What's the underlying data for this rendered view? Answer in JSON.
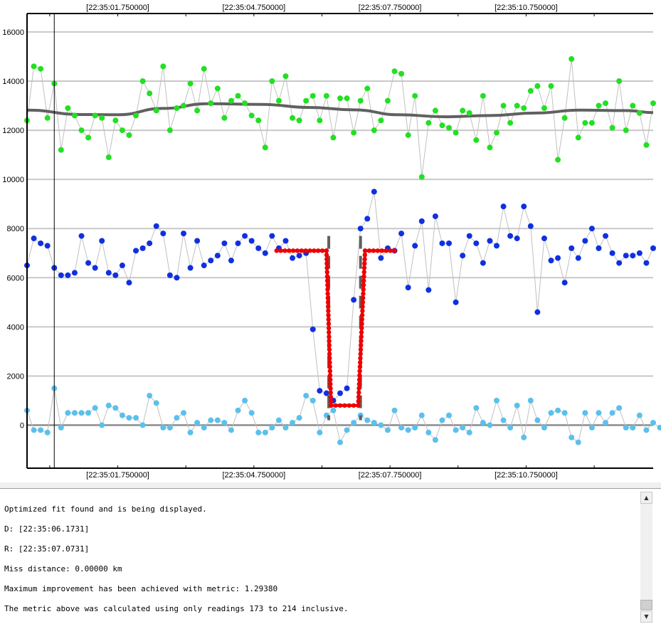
{
  "chart_data": {
    "type": "scatter",
    "title": "",
    "xlabel": "",
    "ylabel": "",
    "x_ticks": [
      "[22:35:01.750000]",
      "[22:35:04.750000]",
      "[22:35:07.750000]",
      "[22:35:10.750000]"
    ],
    "x_tick_readings": [
      20,
      50,
      80,
      110
    ],
    "y_ticks": [
      0,
      2000,
      4000,
      6000,
      8000,
      10000,
      12000,
      14000,
      16000
    ],
    "y_tick_labels": [
      "0",
      "2000",
      "4000",
      "6000",
      "8000",
      "10000",
      "12000",
      "14000",
      "16000"
    ],
    "ylim": [
      -1750,
      16750
    ],
    "xlim_readings": [
      0,
      138
    ],
    "grid": "horizontal",
    "cursor_reading": 6,
    "colors": {
      "comparison": "#22e022",
      "target": "#1030e0",
      "background": "#5bc0ec",
      "fit": "#ee0000",
      "trend": "#606060",
      "edges": "#606060",
      "connector": "#c0c0c0"
    },
    "series": [
      {
        "role": "comparison",
        "values": [
          12400,
          14600,
          14500,
          12500,
          13900,
          11200,
          12900,
          12600,
          12000,
          11700,
          12600,
          12500,
          10900,
          12400,
          12000,
          11800,
          12600,
          14000,
          13500,
          12800,
          14600,
          12000,
          12900,
          13000,
          13900,
          12800,
          14500,
          13100,
          13700,
          12500,
          13200,
          13400,
          13100,
          12600,
          12400,
          11300,
          14000,
          13200,
          14200,
          12500,
          12400,
          13200,
          13400,
          12400,
          13400,
          11700,
          13300,
          13300,
          11900,
          13200,
          13700,
          12000,
          12400,
          13200,
          14400,
          14300,
          11800,
          13400,
          10100,
          12300,
          12800,
          12200,
          12100,
          11900,
          12800,
          12700,
          11600,
          13400,
          11300,
          11900,
          13000,
          12300,
          13000,
          12900,
          13600,
          13800,
          12900,
          13800,
          10800,
          12500,
          14900,
          11700,
          12300,
          12300,
          13000,
          13100,
          12100,
          14000,
          12000,
          13000,
          12700,
          11400,
          13100
        ]
      },
      {
        "role": "target",
        "values": [
          6500,
          7600,
          7400,
          7300,
          6400,
          6100,
          6100,
          6200,
          7700,
          6600,
          6400,
          7500,
          6200,
          6100,
          6500,
          5800,
          7100,
          7200,
          7400,
          8100,
          7800,
          6100,
          6000,
          7800,
          6400,
          7500,
          6500,
          6700,
          6900,
          7400,
          6700,
          7400,
          7700,
          7500,
          7200,
          7000,
          7700,
          7200,
          7500,
          6800,
          6900,
          7000,
          3900,
          1400,
          1300,
          1000,
          1300,
          1500,
          5100,
          8000,
          8400,
          9500,
          6800,
          7200,
          7100,
          7800,
          5600,
          7300,
          8300,
          5500,
          8500,
          7400,
          7400,
          5000,
          6900,
          7700,
          7400,
          6600,
          7500,
          7300,
          8900,
          7700,
          7600,
          8900,
          8100,
          4600,
          7600,
          6700,
          6800,
          5800,
          7200,
          6800,
          7500,
          8000,
          7200,
          7700,
          7000,
          6600,
          6900,
          6900,
          7000,
          6600,
          7200
        ]
      },
      {
        "role": "background",
        "values": [
          600,
          -200,
          -200,
          -300,
          1500,
          -100,
          500,
          500,
          500,
          500,
          700,
          0,
          800,
          700,
          400,
          300,
          300,
          0,
          1200,
          900,
          -100,
          -100,
          300,
          500,
          -300,
          100,
          -100,
          200,
          200,
          100,
          -200,
          600,
          1000,
          500,
          -300,
          -300,
          -100,
          200,
          -100,
          100,
          300,
          1200,
          1000,
          -300,
          400,
          600,
          -700,
          -200,
          100,
          400,
          200,
          100,
          0,
          -200,
          600,
          -100,
          -200,
          -100,
          400,
          -300,
          -600,
          200,
          400,
          -200,
          -100,
          -300,
          700,
          100,
          0,
          1000,
          200,
          -100,
          800,
          -500,
          1000,
          200,
          -100,
          500,
          600,
          500,
          -500,
          -700,
          500,
          -100,
          500,
          100,
          500,
          700,
          -100,
          -100,
          400,
          -200,
          100,
          -100,
          -400,
          -900
        ]
      },
      {
        "role": "fit",
        "segments": [
          {
            "x": [
              55,
              66
            ],
            "y": [
              7100,
              7100
            ]
          },
          {
            "x": [
              66,
              67
            ],
            "y": [
              7100,
              800
            ]
          },
          {
            "x": [
              67,
              73
            ],
            "y": [
              800,
              800
            ]
          },
          {
            "x": [
              73,
              74.5
            ],
            "y": [
              800,
              7100
            ]
          },
          {
            "x": [
              74.5,
              81
            ],
            "y": [
              7100,
              7100
            ]
          }
        ]
      },
      {
        "role": "trend",
        "x": [
          0,
          12,
          20,
          30,
          40,
          52,
          62,
          72,
          82,
          92,
          102,
          112,
          122,
          132,
          138
        ],
        "y": [
          12820,
          12640,
          12630,
          12890,
          13080,
          13050,
          12930,
          12830,
          12630,
          12550,
          12600,
          12700,
          12820,
          12800,
          12720
        ]
      }
    ],
    "event_edges": {
      "D_reading": 66.5,
      "R_reading": 73.5,
      "y_range": [
        200,
        7700
      ]
    }
  },
  "log": {
    "lines": [
      "Optimized fit found and is being displayed.",
      "D: [22:35:06.1731]",
      "R: [22:35:07.0731]",
      "Miss distance: 0.00000 km",
      "Maximum improvement has been achieved with metric: 1.29380",
      "The metric above was calculated using only readings 173 to 214 inclusive."
    ],
    "scroll_up_icon": "arrow-up-icon",
    "scroll_down_icon": "arrow-down-icon"
  }
}
